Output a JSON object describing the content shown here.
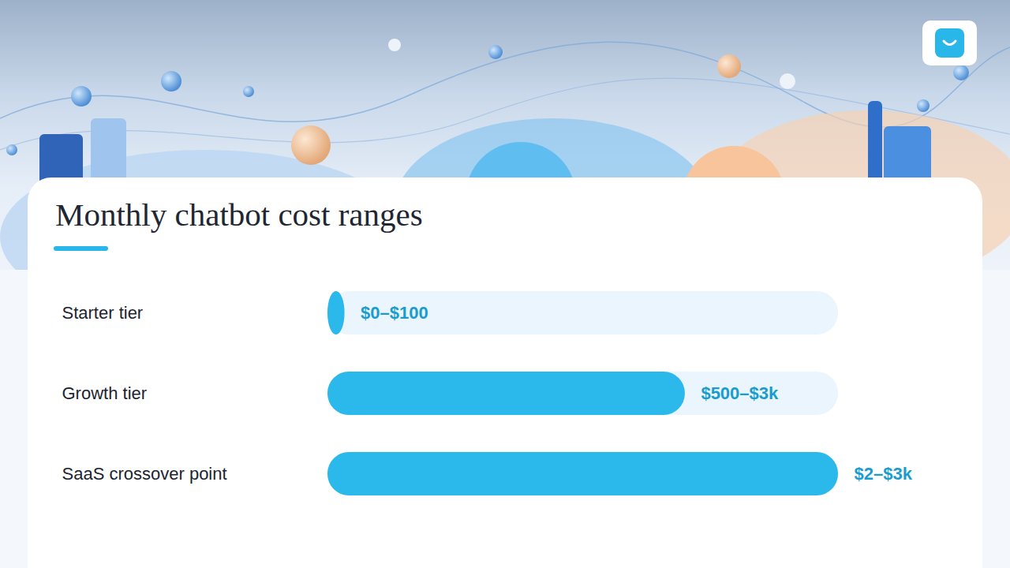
{
  "chart_data": {
    "type": "bar",
    "title": "Monthly chatbot cost ranges",
    "orientation": "horizontal",
    "categories": [
      "Starter tier",
      "Growth tier",
      "SaaS crossover point"
    ],
    "values": [
      100,
      2100,
      3000
    ],
    "value_labels": [
      "$0–$100",
      "$500–$3k",
      "$2–$3k"
    ],
    "xlim": [
      0,
      3000
    ],
    "color": "#2bb8ea",
    "data_labels": true,
    "tick_labels": false
  }
}
